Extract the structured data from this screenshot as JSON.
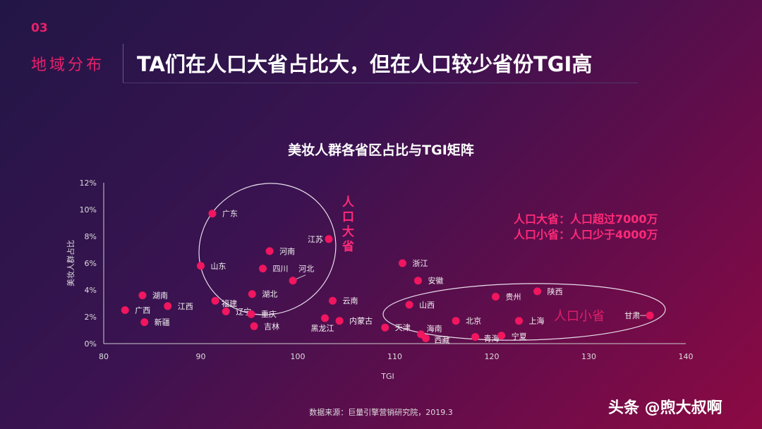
{
  "header": {
    "section_number": "03",
    "section_name": "地域分布",
    "title": "TA们在人口大省占比大，但在人口较少省份TGI高"
  },
  "annotations": {
    "big_province": "人口大省",
    "small_province": "人口小省",
    "legend_big": "人口大省：人口超过7000万",
    "legend_small": "人口小省：人口少于4000万"
  },
  "footer": {
    "source": "数据来源：巨量引擎营销研究院，2019.3",
    "watermark": "头条 @煦大叔啊"
  },
  "colors": {
    "point": "#f0165f",
    "accent": "#ff2a78"
  },
  "chart_data": {
    "type": "scatter",
    "title": "美妆人群各省区占比与TGI矩阵",
    "xlabel": "TGI",
    "ylabel": "美妆人群占比",
    "xlim": [
      80,
      140
    ],
    "ylim": [
      0,
      12
    ],
    "xticks": [
      "80",
      "90",
      "100",
      "110",
      "120",
      "130",
      "140"
    ],
    "yticks": [
      "0%",
      "2%",
      "4%",
      "6%",
      "8%",
      "10%",
      "12%"
    ],
    "grid": false,
    "points": [
      {
        "name": "广东",
        "x": 91.2,
        "y": 9.7
      },
      {
        "name": "江苏",
        "x": 103.2,
        "y": 7.8
      },
      {
        "name": "河南",
        "x": 97.1,
        "y": 6.9
      },
      {
        "name": "山东",
        "x": 90.0,
        "y": 5.8
      },
      {
        "name": "四川",
        "x": 96.4,
        "y": 5.6
      },
      {
        "name": "河北",
        "x": 99.5,
        "y": 4.7
      },
      {
        "name": "湖北",
        "x": 95.3,
        "y": 3.7
      },
      {
        "name": "湖南",
        "x": 84.0,
        "y": 3.6
      },
      {
        "name": "福建",
        "x": 91.5,
        "y": 3.2
      },
      {
        "name": "江西",
        "x": 86.6,
        "y": 2.8
      },
      {
        "name": "广西",
        "x": 82.2,
        "y": 2.5
      },
      {
        "name": "辽宁",
        "x": 92.6,
        "y": 2.4
      },
      {
        "name": "重庆",
        "x": 95.2,
        "y": 2.2
      },
      {
        "name": "新疆",
        "x": 84.2,
        "y": 1.6
      },
      {
        "name": "吉林",
        "x": 95.5,
        "y": 1.3
      },
      {
        "name": "黑龙江",
        "x": 102.8,
        "y": 1.9
      },
      {
        "name": "内蒙古",
        "x": 104.3,
        "y": 1.7
      },
      {
        "name": "云南",
        "x": 103.6,
        "y": 3.2
      },
      {
        "name": "浙江",
        "x": 110.8,
        "y": 6.0
      },
      {
        "name": "安徽",
        "x": 112.4,
        "y": 4.7
      },
      {
        "name": "山西",
        "x": 111.5,
        "y": 2.9
      },
      {
        "name": "天津",
        "x": 109.0,
        "y": 1.2
      },
      {
        "name": "海南",
        "x": 112.7,
        "y": 0.7
      },
      {
        "name": "西藏",
        "x": 113.2,
        "y": 0.4
      },
      {
        "name": "北京",
        "x": 116.3,
        "y": 1.7
      },
      {
        "name": "贵州",
        "x": 120.4,
        "y": 3.5
      },
      {
        "name": "陕西",
        "x": 124.7,
        "y": 3.9
      },
      {
        "name": "上海",
        "x": 122.8,
        "y": 1.7
      },
      {
        "name": "青海",
        "x": 118.3,
        "y": 0.5
      },
      {
        "name": "宁夏",
        "x": 121.0,
        "y": 0.6
      },
      {
        "name": "甘肃",
        "x": 136.3,
        "y": 2.1
      }
    ]
  }
}
